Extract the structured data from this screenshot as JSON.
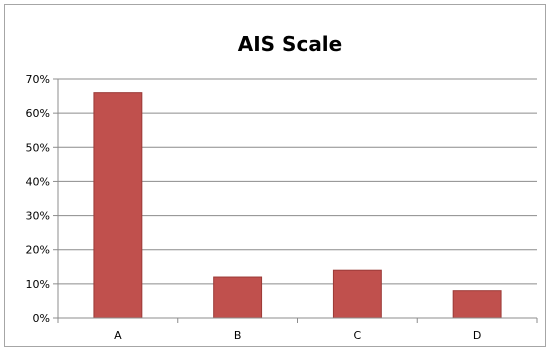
{
  "chart_data": {
    "type": "bar",
    "title": "AIS Scale",
    "xlabel": "",
    "ylabel": "",
    "categories": [
      "A",
      "B",
      "C",
      "D"
    ],
    "values": [
      66,
      12,
      14,
      8
    ],
    "value_format": "percent",
    "ylim": [
      0,
      70
    ],
    "yticks": [
      0,
      10,
      20,
      30,
      40,
      50,
      60,
      70
    ],
    "ytick_labels": [
      "0%",
      "10%",
      "20%",
      "30%",
      "40%",
      "50%",
      "60%",
      "70%"
    ],
    "grid": true,
    "legend": "none",
    "bar_color": "#c0504d",
    "bar_edge_color": "#9b3a37"
  }
}
